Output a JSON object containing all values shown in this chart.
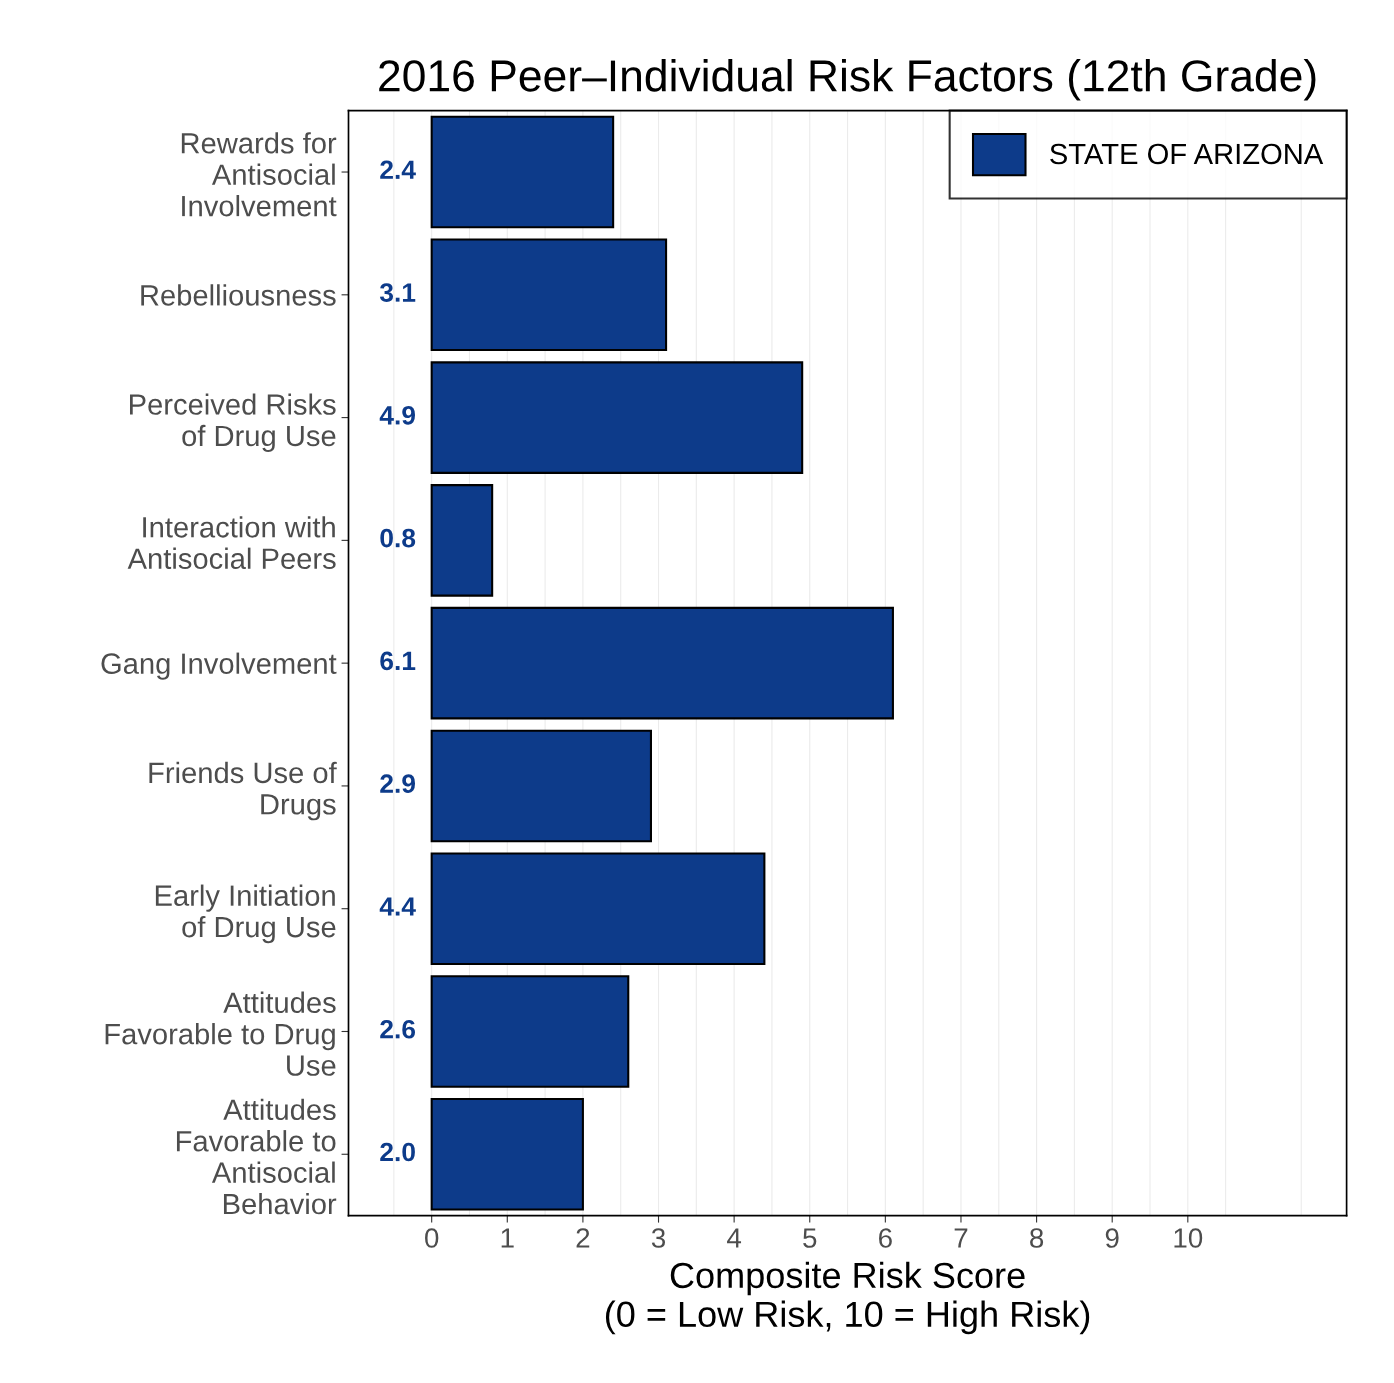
{
  "chart_data": {
    "type": "bar",
    "orientation": "horizontal",
    "title": "2016 Peer–Individual Risk Factors (12th Grade)",
    "xlabel": "Composite Risk Score\n(0 = Low Risk, 10 = High Risk)",
    "categories": [
      "Rewards for\nAntisocial\nInvolvement",
      "Rebelliousness",
      "Perceived Risks\nof Drug Use",
      "Interaction with\nAntisocial Peers",
      "Gang Involvement",
      "Friends Use of\nDrugs",
      "Early Initiation\nof Drug Use",
      "Attitudes\nFavorable to Drug\nUse",
      "Attitudes\nFavorable to\nAntisocial\nBehavior"
    ],
    "series": [
      {
        "name": "STATE OF ARIZONA",
        "color": "#0d3b8a",
        "values": [
          2.4,
          3.1,
          4.9,
          0.8,
          6.1,
          2.9,
          4.4,
          2.6,
          2.0
        ],
        "value_labels": [
          "2.4",
          "3.1",
          "4.9",
          "0.8",
          "6.1",
          "2.9",
          "4.4",
          "2.6",
          "2.0"
        ]
      }
    ],
    "xlim": [
      -1.1,
      12.1
    ],
    "xticks": [
      0,
      1,
      2,
      3,
      4,
      5,
      6,
      7,
      8,
      9,
      10
    ],
    "grid": "x",
    "legend": "top right"
  }
}
